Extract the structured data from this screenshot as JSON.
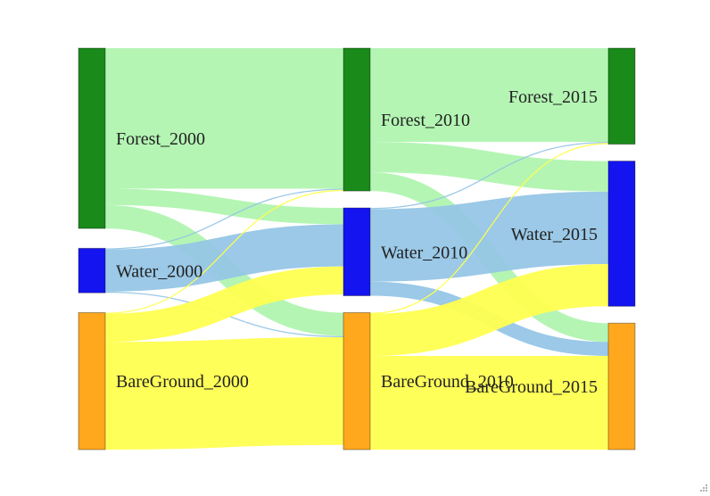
{
  "chart_data": {
    "type": "sankey",
    "columns": [
      "2000",
      "2010",
      "2015"
    ],
    "nodes": [
      {
        "id": "Forest_2000",
        "label": "Forest_2000",
        "column": 0,
        "color": "#1a8a1a"
      },
      {
        "id": "Water_2000",
        "label": "Water_2000",
        "column": 0,
        "color": "#1414f0"
      },
      {
        "id": "BareGround_2000",
        "label": "BareGround_2000",
        "column": 0,
        "color": "#ffa81e"
      },
      {
        "id": "Forest_2010",
        "label": "Forest_2010",
        "column": 1,
        "color": "#1a8a1a"
      },
      {
        "id": "Water_2010",
        "label": "Water_2010",
        "column": 1,
        "color": "#1414f0"
      },
      {
        "id": "BareGround_2010",
        "label": "BareGround_2010",
        "column": 1,
        "color": "#ffa81e"
      },
      {
        "id": "Forest_2015",
        "label": "Forest_2015",
        "column": 2,
        "color": "#1a8a1a"
      },
      {
        "id": "Water_2015",
        "label": "Water_2015",
        "column": 2,
        "color": "#1414f0"
      },
      {
        "id": "BareGround_2015",
        "label": "BareGround_2015",
        "column": 2,
        "color": "#ffa81e"
      }
    ],
    "links": [
      {
        "source": "Forest_2000",
        "target": "Forest_2010",
        "value": 60,
        "color": "#b0f4b0"
      },
      {
        "source": "Forest_2000",
        "target": "Water_2010",
        "value": 7,
        "color": "#b0f4b0"
      },
      {
        "source": "Forest_2000",
        "target": "BareGround_2010",
        "value": 10,
        "color": "#b0f4b0"
      },
      {
        "source": "Water_2000",
        "target": "Forest_2010",
        "value": 0.5,
        "color": "#96c6e6"
      },
      {
        "source": "Water_2000",
        "target": "Water_2010",
        "value": 18,
        "color": "#96c6e6"
      },
      {
        "source": "Water_2000",
        "target": "BareGround_2010",
        "value": 0.5,
        "color": "#96c6e6"
      },
      {
        "source": "BareGround_2000",
        "target": "Forest_2010",
        "value": 0.5,
        "color": "#ffff50"
      },
      {
        "source": "BareGround_2000",
        "target": "Water_2010",
        "value": 12,
        "color": "#ffff50"
      },
      {
        "source": "BareGround_2000",
        "target": "BareGround_2010",
        "value": 46,
        "color": "#ffff50"
      },
      {
        "source": "Forest_2010",
        "target": "Forest_2015",
        "value": 40,
        "color": "#b0f4b0"
      },
      {
        "source": "Forest_2010",
        "target": "Water_2015",
        "value": 13,
        "color": "#b0f4b0"
      },
      {
        "source": "Forest_2010",
        "target": "BareGround_2015",
        "value": 8,
        "color": "#b0f4b0"
      },
      {
        "source": "Water_2010",
        "target": "Forest_2015",
        "value": 0.5,
        "color": "#96c6e6"
      },
      {
        "source": "Water_2010",
        "target": "Water_2015",
        "value": 31,
        "color": "#96c6e6"
      },
      {
        "source": "Water_2010",
        "target": "BareGround_2015",
        "value": 6,
        "color": "#96c6e6"
      },
      {
        "source": "BareGround_2010",
        "target": "Forest_2015",
        "value": 0.5,
        "color": "#ffff50"
      },
      {
        "source": "BareGround_2010",
        "target": "Water_2015",
        "value": 18,
        "color": "#ffff50"
      },
      {
        "source": "BareGround_2010",
        "target": "BareGround_2015",
        "value": 40,
        "color": "#ffff50"
      }
    ]
  }
}
